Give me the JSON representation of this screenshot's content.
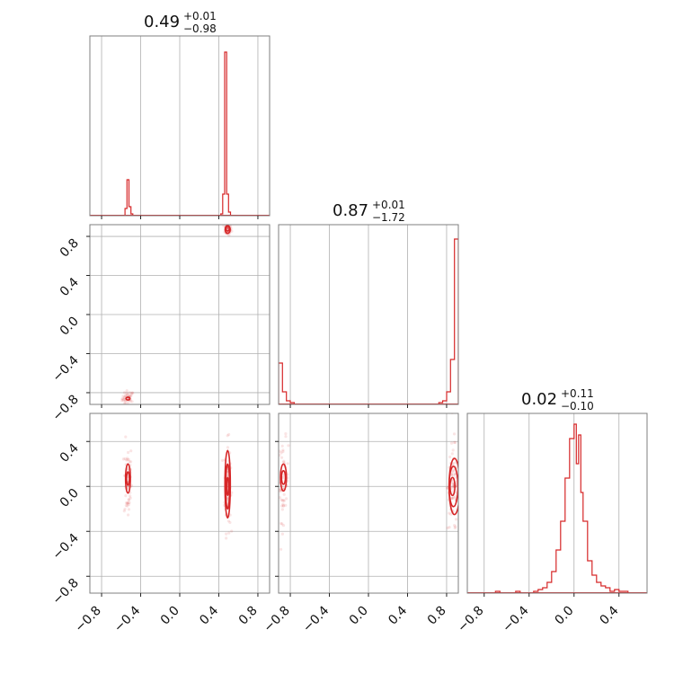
{
  "chart_data": {
    "type": "corner",
    "color": "#d62728",
    "parameters": [
      {
        "median": "0.49",
        "upper": "+0.01",
        "lower": "−0.98"
      },
      {
        "median": "0.87",
        "upper": "+0.01",
        "lower": "−1.72"
      },
      {
        "median": "0.02",
        "upper": "+0.11",
        "lower": "−0.10"
      }
    ],
    "ranges": [
      [
        -0.92,
        0.92
      ],
      [
        -0.92,
        0.92
      ],
      [
        -0.95,
        0.65
      ]
    ],
    "ticks": [
      {
        "values": [
          -0.8,
          -0.4,
          0.0,
          0.4,
          0.8
        ],
        "labels": [
          "−0.8",
          "−0.4",
          "0.0",
          "0.4",
          "0.8"
        ]
      },
      {
        "values": [
          -0.8,
          -0.4,
          0.0,
          0.4,
          0.8
        ],
        "labels": [
          "−0.8",
          "−0.4",
          "0.0",
          "0.4",
          "0.8"
        ]
      },
      {
        "values": [
          -0.8,
          -0.4,
          0.0,
          0.4
        ],
        "labels": [
          "−0.8",
          "−0.4",
          "0.0",
          "0.4"
        ]
      }
    ],
    "histograms": [
      {
        "bins": [
          [
            -0.56,
            -0.54,
            0.04
          ],
          [
            -0.54,
            -0.52,
            0.2
          ],
          [
            -0.52,
            -0.5,
            0.05
          ],
          [
            -0.5,
            -0.48,
            0.01
          ],
          [
            0.42,
            0.44,
            0.01
          ],
          [
            0.44,
            0.46,
            0.12
          ],
          [
            0.46,
            0.48,
            0.91
          ],
          [
            0.48,
            0.5,
            0.12
          ],
          [
            0.5,
            0.52,
            0.02
          ]
        ]
      },
      {
        "bins": [
          [
            -0.92,
            -0.88,
            0.23
          ],
          [
            -0.88,
            -0.84,
            0.07
          ],
          [
            -0.84,
            -0.8,
            0.02
          ],
          [
            -0.8,
            -0.76,
            0.01
          ],
          [
            0.72,
            0.76,
            0.01
          ],
          [
            0.76,
            0.8,
            0.02
          ],
          [
            0.8,
            0.84,
            0.07
          ],
          [
            0.84,
            0.88,
            0.25
          ],
          [
            0.88,
            0.92,
            0.92
          ]
        ]
      },
      {
        "bins": [
          [
            -0.7,
            -0.66,
            0.01
          ],
          [
            -0.52,
            -0.48,
            0.01
          ],
          [
            -0.36,
            -0.32,
            0.01
          ],
          [
            -0.32,
            -0.28,
            0.02
          ],
          [
            -0.28,
            -0.24,
            0.03
          ],
          [
            -0.24,
            -0.2,
            0.06
          ],
          [
            -0.2,
            -0.16,
            0.12
          ],
          [
            -0.16,
            -0.12,
            0.24
          ],
          [
            -0.12,
            -0.08,
            0.4
          ],
          [
            -0.08,
            -0.04,
            0.64
          ],
          [
            -0.04,
            0.0,
            0.86
          ],
          [
            0.0,
            0.02,
            0.94
          ],
          [
            0.02,
            0.04,
            0.72
          ],
          [
            0.04,
            0.06,
            0.88
          ],
          [
            0.06,
            0.08,
            0.56
          ],
          [
            0.08,
            0.12,
            0.4
          ],
          [
            0.12,
            0.16,
            0.18
          ],
          [
            0.16,
            0.2,
            0.1
          ],
          [
            0.2,
            0.24,
            0.06
          ],
          [
            0.24,
            0.28,
            0.04
          ],
          [
            0.28,
            0.32,
            0.03
          ],
          [
            0.32,
            0.36,
            0.01
          ],
          [
            0.36,
            0.4,
            0.02
          ],
          [
            0.4,
            0.44,
            0.01
          ],
          [
            0.44,
            0.48,
            0.01
          ]
        ]
      }
    ],
    "scatter_clusters": [
      {
        "pair": [
          0,
          1
        ],
        "mode_centers": [
          [
            -0.53,
            -0.86
          ],
          [
            0.49,
            0.87
          ]
        ],
        "spread": [
          [
            0.03,
            0.04
          ],
          [
            0.02,
            0.03
          ]
        ],
        "counts": [
          45,
          50
        ]
      },
      {
        "pair": [
          0,
          2
        ],
        "mode_centers": [
          [
            -0.53,
            0.05
          ],
          [
            0.49,
            0.0
          ]
        ],
        "spread": [
          [
            0.02,
            0.18
          ],
          [
            0.015,
            0.2
          ]
        ],
        "counts": [
          60,
          80
        ]
      },
      {
        "pair": [
          1,
          2
        ],
        "mode_centers": [
          [
            -0.87,
            0.05
          ],
          [
            0.87,
            0.0
          ]
        ],
        "spread": [
          [
            0.025,
            0.18
          ],
          [
            0.03,
            0.2
          ]
        ],
        "counts": [
          60,
          80
        ]
      }
    ],
    "contours": [
      {
        "pair": [
          0,
          1
        ],
        "ellipses": [
          [
            0.49,
            0.88,
            0.018,
            0.025
          ],
          [
            0.49,
            0.87,
            0.026,
            0.04
          ],
          [
            -0.53,
            -0.86,
            0.02,
            0.015
          ]
        ]
      },
      {
        "pair": [
          0,
          2
        ],
        "ellipses": [
          [
            0.49,
            0.0,
            0.01,
            0.08
          ],
          [
            0.49,
            0.0,
            0.02,
            0.2
          ],
          [
            0.49,
            0.02,
            0.028,
            0.3
          ],
          [
            -0.53,
            0.07,
            0.014,
            0.06
          ],
          [
            -0.53,
            0.07,
            0.025,
            0.13
          ]
        ]
      },
      {
        "pair": [
          1,
          2
        ],
        "ellipses": [
          [
            0.86,
            0.0,
            0.025,
            0.08
          ],
          [
            0.87,
            0.0,
            0.045,
            0.18
          ],
          [
            0.88,
            0.0,
            0.055,
            0.25
          ],
          [
            -0.87,
            0.08,
            0.02,
            0.06
          ],
          [
            -0.87,
            0.08,
            0.03,
            0.12
          ]
        ]
      }
    ],
    "grid": true
  }
}
